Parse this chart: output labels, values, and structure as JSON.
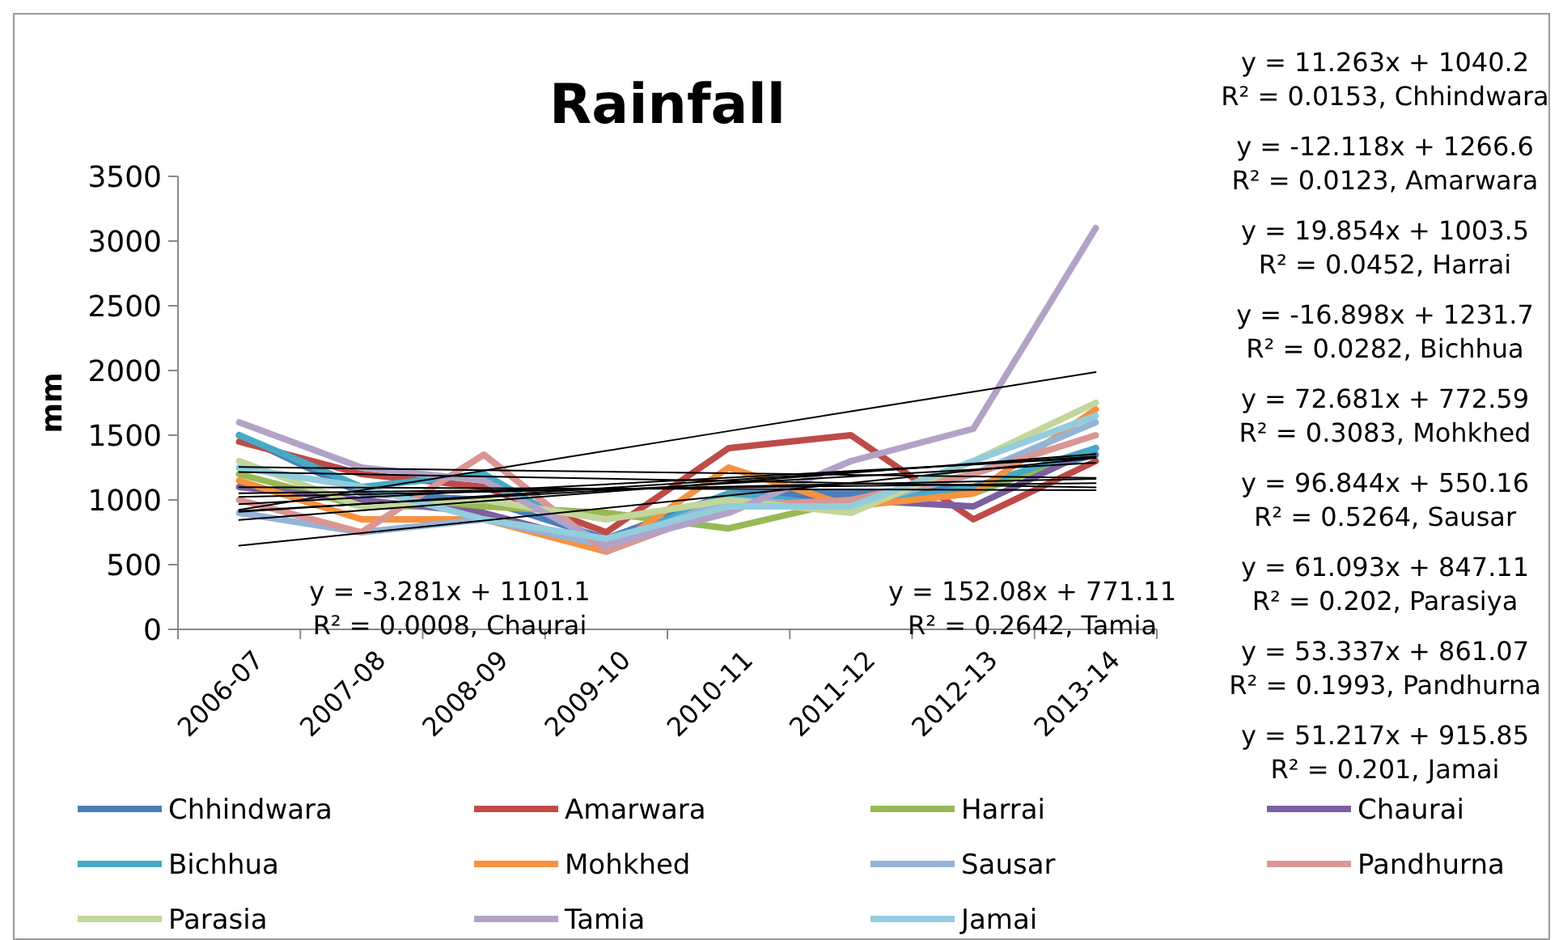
{
  "chart_data": {
    "type": "line",
    "title": "Rainfall",
    "ylabel": "mm",
    "categories": [
      "2006-07",
      "2007-08",
      "2008-09",
      "2009-10",
      "2010-11",
      "2011-12",
      "2012-13",
      "2013-14"
    ],
    "ylim": [
      0,
      3500
    ],
    "yticks": [
      0,
      500,
      1000,
      1500,
      2000,
      2500,
      3000,
      3500
    ],
    "grid": false,
    "legend": "bottom",
    "marker": "none",
    "line_style": "solid",
    "series": [
      {
        "name": "Chhindwara",
        "color": "#4a7ebb",
        "values": [
          1500,
          1050,
          1000,
          700,
          1050,
          1050,
          1100,
          1350
        ]
      },
      {
        "name": "Amarwara",
        "color": "#be4b48",
        "values": [
          1450,
          1200,
          1100,
          750,
          1400,
          1500,
          850,
          1300
        ]
      },
      {
        "name": "Harrai",
        "color": "#98b954",
        "values": [
          1200,
          950,
          950,
          900,
          780,
          1000,
          1050,
          1400
        ]
      },
      {
        "name": "Chaurai",
        "color": "#7d60a0",
        "values": [
          1100,
          1000,
          900,
          650,
          1000,
          1000,
          950,
          1400
        ]
      },
      {
        "name": "Bichhua",
        "color": "#46aac5",
        "values": [
          1500,
          1100,
          1200,
          650,
          1050,
          950,
          1100,
          1400
        ]
      },
      {
        "name": "Mohkhed",
        "color": "#f69240",
        "values": [
          1150,
          850,
          850,
          600,
          1250,
          950,
          1050,
          1700
        ]
      },
      {
        "name": "Sausar",
        "color": "#95b3d7",
        "values": [
          900,
          750,
          850,
          650,
          1000,
          950,
          1200,
          1600
        ]
      },
      {
        "name": "Pandhurna",
        "color": "#da9694",
        "values": [
          1000,
          750,
          1350,
          600,
          950,
          1000,
          1200,
          1500
        ]
      },
      {
        "name": "Parasia",
        "color": "#c3d69b",
        "values": [
          1300,
          950,
          1000,
          850,
          1000,
          900,
          1300,
          1750
        ]
      },
      {
        "name": "Tamia",
        "color": "#b2a2c7",
        "values": [
          1600,
          1250,
          1150,
          650,
          900,
          1300,
          1550,
          3100
        ]
      },
      {
        "name": "Jamai",
        "color": "#93cddd",
        "values": [
          1250,
          1100,
          850,
          700,
          950,
          950,
          1300,
          1650
        ]
      },
      {
        "type": "line",
        "color": "#000000",
        "values": [
          1051,
          1063,
          1074,
          1085,
          1097,
          1108,
          1119,
          1130
        ]
      },
      {
        "type": "line",
        "color": "#000000",
        "values": [
          1254,
          1242,
          1230,
          1218,
          1206,
          1194,
          1182,
          1170
        ]
      },
      {
        "type": "line",
        "color": "#000000",
        "values": [
          1023,
          1043,
          1063,
          1083,
          1103,
          1123,
          1142,
          1162
        ]
      },
      {
        "type": "line",
        "color": "#000000",
        "values": [
          1098,
          1095,
          1091,
          1088,
          1085,
          1081,
          1078,
          1075
        ]
      },
      {
        "type": "line",
        "color": "#000000",
        "values": [
          1215,
          1198,
          1181,
          1164,
          1147,
          1130,
          1113,
          1097
        ]
      },
      {
        "type": "line",
        "color": "#000000",
        "values": [
          845,
          918,
          991,
          1063,
          1136,
          1209,
          1281,
          1354
        ]
      },
      {
        "type": "line",
        "color": "#000000",
        "values": [
          647,
          744,
          841,
          938,
          1034,
          1131,
          1228,
          1325
        ]
      },
      {
        "type": "line",
        "color": "#000000",
        "values": [
          914,
          968,
          1021,
          1074,
          1128,
          1181,
          1234,
          1288
        ]
      },
      {
        "type": "line",
        "color": "#000000",
        "values": [
          908,
          969,
          1030,
          1092,
          1153,
          1214,
          1275,
          1336
        ]
      },
      {
        "type": "line",
        "color": "#000000",
        "values": [
          923,
          1075,
          1227,
          1379,
          1532,
          1684,
          1836,
          1988
        ]
      },
      {
        "type": "line",
        "color": "#000000",
        "values": [
          967,
          1018,
          1070,
          1121,
          1172,
          1223,
          1274,
          1326
        ]
      }
    ],
    "annotations": [
      "y = 11.263x + 1040.2\nR² = 0.0153, Chhindwara",
      "y = -12.118x + 1266.6\nR² = 0.0123, Amarwara",
      "y = 19.854x + 1003.5\nR² = 0.0452, Harrai",
      "y = -16.898x + 1231.7\nR² = 0.0282, Bichhua",
      "y = 72.681x + 772.59\nR² = 0.3083, Mohkhed",
      "y = 96.844x + 550.16\nR² = 0.5264, Sausar",
      "y = 61.093x + 847.11\nR² = 0.202, Parasiya",
      "y = 53.337x + 861.07\nR² = 0.1993, Pandhurna",
      "y = 51.217x + 915.85\nR² = 0.201, Jamai",
      "y = -3.281x + 1101.1\nR² = 0.0008, Chaurai",
      "y = 152.08x + 771.11\nR² = 0.2642, Tamia"
    ]
  }
}
